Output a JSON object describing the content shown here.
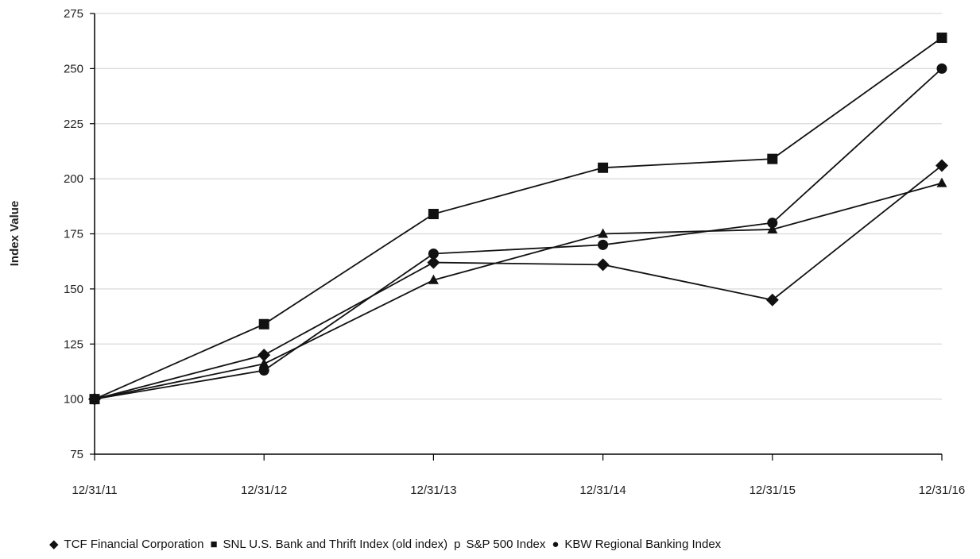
{
  "chart_data": {
    "type": "line",
    "title": "",
    "xlabel": "",
    "ylabel": "Index Value",
    "categories": [
      "12/31/11",
      "12/31/12",
      "12/31/13",
      "12/31/14",
      "12/31/15",
      "12/31/16"
    ],
    "ylim": [
      75,
      275
    ],
    "yticks": [
      75,
      100,
      125,
      150,
      175,
      200,
      225,
      250,
      275
    ],
    "grid": true,
    "legend_position": "bottom",
    "series": [
      {
        "name": "TCF Financial Corporation",
        "marker": "diamond",
        "marker_glyph": "◆",
        "values": [
          100,
          120,
          162,
          161,
          145,
          206
        ]
      },
      {
        "name": "SNL U.S. Bank and Thrift Index (old index)",
        "marker": "square",
        "marker_glyph": "■",
        "values": [
          100,
          134,
          184,
          205,
          209,
          264
        ]
      },
      {
        "name": "S&P 500 Index",
        "marker": "triangle",
        "marker_glyph": "p",
        "values": [
          100,
          116,
          154,
          175,
          177,
          198
        ]
      },
      {
        "name": "KBW Regional Banking Index",
        "marker": "circle",
        "marker_glyph": "●",
        "values": [
          100,
          113,
          166,
          170,
          180,
          250
        ]
      }
    ],
    "colors": {
      "line": "#111111",
      "grid": "#d9d9d9",
      "axis": "#000000"
    }
  }
}
